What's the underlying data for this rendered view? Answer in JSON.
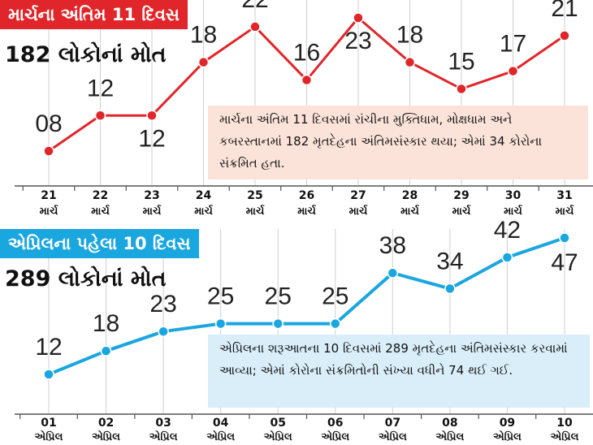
{
  "chart_data": [
    {
      "type": "line",
      "title": "માર્ચના અંતિમ 11 દિવસ",
      "subtitle": "182 લોકોનાં મોત",
      "annotation": "માર્ચના અંતિમ 11 દિવસમાં રાંચીના મુક્તિધામ, મોક્ષધામ અને કબરસ્તાનમાં 182 મૃતદેહના અંતિમસંસ્કાર થયા; એમાં 34 કોરોના સંક્રમિત હતા.",
      "categories": [
        {
          "day": "21",
          "month": "માર્ચ"
        },
        {
          "day": "22",
          "month": "માર્ચ"
        },
        {
          "day": "23",
          "month": "માર્ચ"
        },
        {
          "day": "24",
          "month": "માર્ચ"
        },
        {
          "day": "25",
          "month": "માર્ચ"
        },
        {
          "day": "26",
          "month": "માર્ચ"
        },
        {
          "day": "27",
          "month": "માર્ચ"
        },
        {
          "day": "28",
          "month": "માર્ચ"
        },
        {
          "day": "29",
          "month": "માર્ચ"
        },
        {
          "day": "30",
          "month": "માર્ચ"
        },
        {
          "day": "31",
          "month": "માર્ચ"
        }
      ],
      "values": [
        8,
        12,
        12,
        18,
        22,
        16,
        23,
        18,
        15,
        17,
        21
      ],
      "labels": [
        "08",
        "12",
        "12",
        "18",
        "22",
        "16",
        "23",
        "18",
        "15",
        "17",
        "21"
      ],
      "ylim": [
        6,
        24
      ],
      "grid": true,
      "color": "#e0262a"
    },
    {
      "type": "line",
      "title": "એપ્રિલના પહેલા 10 દિવસ",
      "subtitle": "289 લોકોનાં મોત",
      "annotation": "એપ્રિલના શરૂઆતના 10 દિવસમાં 289 મૃતદેહના અંતિમસંસ્કાર કરવામાં આવ્યા; એમાં કોરોના સંક્રમિતોની સંખ્યા વધીને 74 થઈ ગઈ.",
      "categories": [
        {
          "day": "01",
          "month": "એપ્રિલ"
        },
        {
          "day": "02",
          "month": "એપ્રિલ"
        },
        {
          "day": "03",
          "month": "એપ્રિલ"
        },
        {
          "day": "04",
          "month": "એપ્રિલ"
        },
        {
          "day": "05",
          "month": "એપ્રિલ"
        },
        {
          "day": "06",
          "month": "એપ્રિલ"
        },
        {
          "day": "07",
          "month": "એપ્રિલ"
        },
        {
          "day": "08",
          "month": "એપ્રિલ"
        },
        {
          "day": "09",
          "month": "એપ્રિલ"
        },
        {
          "day": "10",
          "month": "એપ્રિલ"
        }
      ],
      "values": [
        12,
        18,
        23,
        25,
        25,
        25,
        38,
        34,
        42,
        47
      ],
      "labels": [
        "12",
        "18",
        "23",
        "25",
        "25",
        "25",
        "38",
        "34",
        "42",
        "47"
      ],
      "ylim": [
        10,
        50
      ],
      "grid": true,
      "color": "#1aa6df"
    }
  ]
}
